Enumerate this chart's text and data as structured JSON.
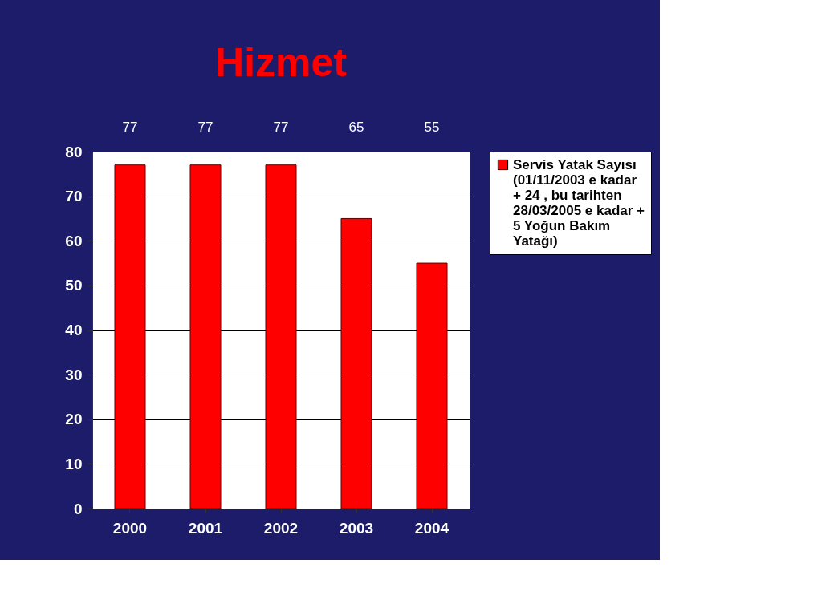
{
  "chart_data": {
    "type": "bar",
    "title": "Hizmet",
    "categories": [
      "2000",
      "2001",
      "2002",
      "2003",
      "2004"
    ],
    "series": [
      {
        "name": "Servis Yatak Sayısı (01/11/2003 e kadar + 24 , bu tarihten 28/03/2005 e kadar + 5 Yoğun Bakım Yatağı)",
        "color": "#ff0000",
        "values": [
          77,
          77,
          77,
          65,
          55
        ]
      }
    ],
    "ylim": [
      0,
      80
    ],
    "yticks": [
      0,
      10,
      20,
      30,
      40,
      50,
      60,
      70,
      80
    ],
    "grid": "y",
    "legend": "right",
    "data_labels": true
  }
}
